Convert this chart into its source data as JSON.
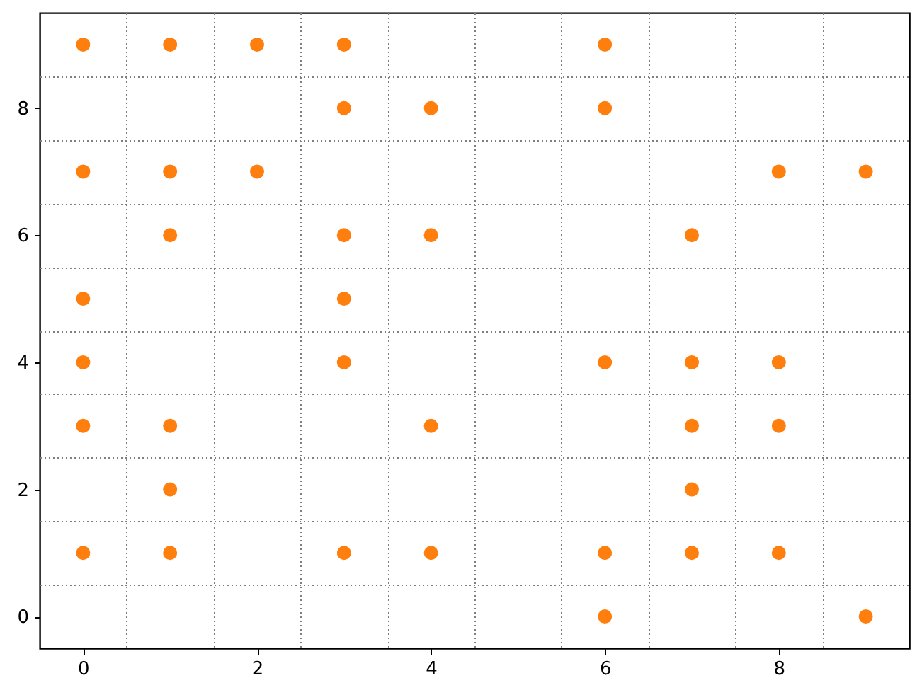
{
  "chart_data": {
    "type": "scatter",
    "x": [
      0,
      1,
      2,
      3,
      6,
      3,
      4,
      6,
      0,
      1,
      2,
      8,
      9,
      1,
      3,
      4,
      7,
      0,
      3,
      0,
      3,
      6,
      7,
      8,
      0,
      1,
      4,
      7,
      8,
      1,
      7,
      0,
      1,
      3,
      4,
      6,
      7,
      8,
      6,
      9
    ],
    "values": [
      9,
      9,
      9,
      9,
      9,
      8,
      8,
      8,
      7,
      7,
      7,
      7,
      7,
      6,
      6,
      6,
      6,
      5,
      5,
      4,
      4,
      4,
      4,
      4,
      3,
      3,
      3,
      3,
      3,
      2,
      2,
      1,
      1,
      1,
      1,
      1,
      1,
      1,
      0,
      0
    ],
    "color": "#ff7f0e",
    "marker": "circle",
    "xlim": [
      -0.5,
      9.5
    ],
    "xticks": [
      0,
      {
        "value": 0.5,
        "label": null
      },
      {
        "value": 1.5,
        "label": null
      },
      2,
      {
        "value": 2.5,
        "label": null
      },
      {
        "value": 3.5,
        "label": null
      },
      4,
      {
        "value": 4.5,
        "label": null
      },
      {
        "value": 5.5,
        "label": null
      },
      6,
      {
        "value": 6.5,
        "label": null
      },
      {
        "value": 7.5,
        "label": null
      },
      8,
      {
        "value": 8.5,
        "label": null
      }
    ],
    "ylim": [
      -0.5,
      9.5
    ],
    "yticks": [
      0,
      {
        "value": 0.5,
        "label": null
      },
      {
        "value": 1.5,
        "label": null
      },
      2,
      {
        "value": 2.5,
        "label": null
      },
      {
        "value": 3.5,
        "label": null
      },
      4,
      {
        "value": 4.5,
        "label": null
      },
      {
        "value": 5.5,
        "label": null
      },
      6,
      {
        "value": 6.5,
        "label": null
      },
      {
        "value": 7.5,
        "label": null
      },
      8,
      {
        "value": 8.5,
        "label": null
      }
    ],
    "grid": true
  }
}
